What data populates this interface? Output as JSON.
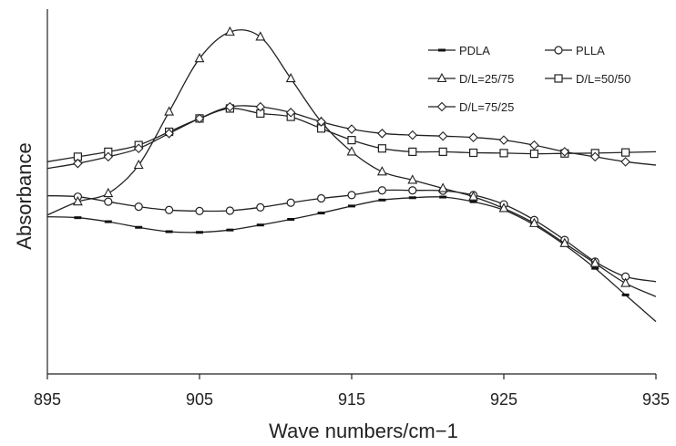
{
  "chart_data": {
    "type": "line",
    "title": "",
    "xlabel": "Wave numbers/cm−1",
    "ylabel": "Absorbance",
    "xlim": [
      895,
      935
    ],
    "ylim": [
      0,
      1
    ],
    "xticks": [
      "895",
      "905",
      "915",
      "925",
      "935"
    ],
    "grid": false,
    "legend_position": "top-right",
    "series": [
      {
        "name": "PDLA",
        "marker": "dash",
        "x": [
          895,
          897,
          899,
          901,
          903,
          905,
          907,
          909,
          911,
          913,
          915,
          917,
          919,
          921,
          923,
          925,
          927,
          929,
          931,
          933,
          935
        ],
        "y": [
          0.445,
          0.442,
          0.43,
          0.413,
          0.4,
          0.398,
          0.405,
          0.42,
          0.437,
          0.456,
          0.477,
          0.495,
          0.502,
          0.504,
          0.49,
          0.465,
          0.42,
          0.36,
          0.29,
          0.21,
          0.13
        ]
      },
      {
        "name": "PLLA",
        "marker": "circle",
        "x": [
          895,
          897,
          899,
          901,
          903,
          905,
          907,
          909,
          911,
          913,
          915,
          917,
          919,
          921,
          923,
          925,
          927,
          929,
          931,
          933,
          935
        ],
        "y": [
          0.508,
          0.505,
          0.49,
          0.475,
          0.465,
          0.462,
          0.463,
          0.473,
          0.487,
          0.5,
          0.51,
          0.524,
          0.524,
          0.523,
          0.51,
          0.482,
          0.435,
          0.375,
          0.31,
          0.265,
          0.25
        ]
      },
      {
        "name": "D/L=25/75",
        "marker": "triangle",
        "x": [
          895,
          897,
          899,
          901,
          903,
          905,
          907,
          909,
          911,
          913,
          915,
          917,
          919,
          921,
          923,
          925,
          927,
          929,
          931,
          933,
          935
        ],
        "y": [
          0.45,
          0.49,
          0.515,
          0.6,
          0.76,
          0.92,
          1.0,
          0.985,
          0.86,
          0.73,
          0.64,
          0.58,
          0.555,
          0.53,
          0.505,
          0.47,
          0.425,
          0.365,
          0.305,
          0.245,
          0.205
        ]
      },
      {
        "name": "D/L=50/50",
        "marker": "square",
        "x": [
          895,
          897,
          899,
          901,
          903,
          905,
          907,
          909,
          911,
          913,
          915,
          917,
          919,
          921,
          923,
          925,
          927,
          929,
          931,
          933,
          935
        ],
        "y": [
          0.61,
          0.625,
          0.64,
          0.66,
          0.7,
          0.74,
          0.77,
          0.755,
          0.745,
          0.71,
          0.675,
          0.65,
          0.64,
          0.64,
          0.637,
          0.636,
          0.634,
          0.635,
          0.636,
          0.638,
          0.64
        ]
      },
      {
        "name": "D/L=75/25",
        "marker": "diamond",
        "x": [
          895,
          897,
          899,
          901,
          903,
          905,
          907,
          909,
          911,
          913,
          915,
          917,
          919,
          921,
          923,
          925,
          927,
          929,
          931,
          933,
          935
        ],
        "y": [
          0.59,
          0.605,
          0.625,
          0.65,
          0.695,
          0.74,
          0.775,
          0.775,
          0.758,
          0.73,
          0.708,
          0.695,
          0.69,
          0.687,
          0.683,
          0.675,
          0.66,
          0.64,
          0.625,
          0.61,
          0.6
        ]
      }
    ]
  }
}
